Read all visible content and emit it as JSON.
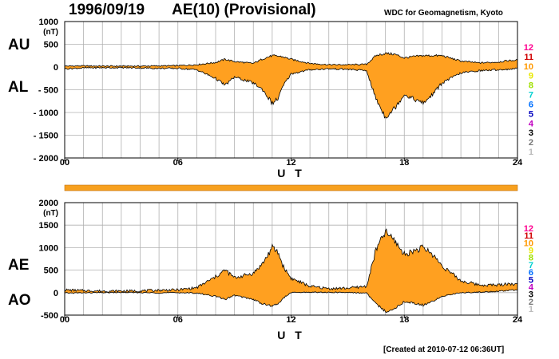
{
  "header": {
    "date": "1996/09/19",
    "index_title": "AE(10) (Provisional)",
    "source": "WDC for Geomagnetism, Kyoto",
    "created": "[Created at 2010-07-12 06:36UT]"
  },
  "colors": {
    "fill": "#FFA020",
    "line": "#000000",
    "grid": "#B0B0B0",
    "bar": "#F7A01E"
  },
  "hour_scale": [
    "12",
    "11",
    "10",
    "9",
    "8",
    "7",
    "6",
    "5",
    "4",
    "3",
    "2",
    "1"
  ],
  "hour_scale_colors": [
    "#FF0090",
    "#D00000",
    "#FF9900",
    "#E8E800",
    "#A0E000",
    "#00D0D0",
    "#0070FF",
    "#0000C0",
    "#C000C0",
    "#000000",
    "#777777",
    "#BBBBBB"
  ],
  "chart_data": [
    {
      "type": "area",
      "title": "AU / AL",
      "ylabel": "(nT)",
      "xlabel": "U T",
      "xlim": [
        0,
        24
      ],
      "ylim": [
        -2000,
        1000
      ],
      "x_ticks": [
        "00",
        "06",
        "12",
        "18",
        "24"
      ],
      "y_ticks": [
        "1000",
        "500",
        "0",
        "- 500",
        "- 1000",
        "- 1500",
        "- 2000"
      ],
      "series_labels": [
        "AU",
        "AL"
      ],
      "series": [
        {
          "name": "AU",
          "x": [
            0,
            1,
            2,
            3,
            4,
            5,
            6,
            7,
            8,
            8.5,
            9,
            10,
            10.5,
            11,
            11.5,
            12,
            13,
            14,
            15,
            16,
            16.5,
            17,
            17.5,
            18,
            18.5,
            19,
            20,
            21,
            22,
            23,
            23.5,
            24
          ],
          "values": [
            20,
            25,
            20,
            20,
            20,
            25,
            30,
            50,
            100,
            170,
            120,
            80,
            180,
            250,
            230,
            170,
            80,
            50,
            50,
            60,
            250,
            300,
            280,
            200,
            230,
            250,
            250,
            130,
            90,
            110,
            140,
            150
          ]
        },
        {
          "name": "AL",
          "x": [
            0,
            1,
            2,
            3,
            4,
            5,
            6,
            7,
            8,
            8.5,
            9,
            10,
            10.5,
            11,
            11.3,
            11.6,
            12,
            13,
            14,
            15,
            16,
            16.5,
            17,
            17.5,
            18,
            18.5,
            19,
            19.5,
            20,
            21,
            22,
            23,
            23.5,
            24
          ],
          "values": [
            -40,
            -20,
            -15,
            -15,
            -20,
            -30,
            -30,
            -60,
            -250,
            -400,
            -220,
            -350,
            -500,
            -800,
            -700,
            -400,
            -150,
            -60,
            -40,
            -50,
            -80,
            -700,
            -1100,
            -900,
            -600,
            -700,
            -800,
            -600,
            -350,
            -130,
            -80,
            -60,
            -50,
            -30
          ]
        }
      ]
    },
    {
      "type": "area",
      "title": "AE / AO",
      "ylabel": "(nT)",
      "xlabel": "U T",
      "xlim": [
        0,
        24
      ],
      "ylim": [
        -500,
        2000
      ],
      "x_ticks": [
        "00",
        "06",
        "12",
        "18",
        "24"
      ],
      "y_ticks": [
        "2000",
        "1500",
        "1000",
        "500",
        "0",
        "-500"
      ],
      "series_labels": [
        "AE",
        "AO"
      ],
      "series": [
        {
          "name": "AE",
          "x": [
            0,
            1,
            2,
            3,
            4,
            5,
            6,
            7,
            8,
            8.5,
            9,
            10,
            10.5,
            11,
            11.3,
            11.6,
            12,
            13,
            14,
            15,
            16,
            16.5,
            17,
            17.5,
            18,
            18.5,
            19,
            19.5,
            20,
            21,
            22,
            23,
            23.5,
            24
          ],
          "values": [
            60,
            45,
            35,
            35,
            40,
            55,
            60,
            110,
            350,
            500,
            330,
            430,
            650,
            1000,
            900,
            570,
            320,
            140,
            90,
            100,
            140,
            950,
            1350,
            1150,
            850,
            930,
            1000,
            850,
            600,
            260,
            170,
            170,
            200,
            180
          ]
        },
        {
          "name": "AO",
          "x": [
            0,
            1,
            2,
            3,
            4,
            5,
            6,
            7,
            8,
            8.5,
            9,
            10,
            10.5,
            11,
            11.3,
            11.6,
            12,
            13,
            14,
            15,
            16,
            16.5,
            17,
            17.5,
            18,
            18.5,
            19,
            19.5,
            20,
            21,
            22,
            23,
            23.5,
            24
          ],
          "values": [
            -10,
            -5,
            0,
            5,
            0,
            -5,
            0,
            -10,
            -80,
            -150,
            -60,
            -150,
            -250,
            -300,
            -250,
            -120,
            0,
            10,
            5,
            5,
            -10,
            -250,
            -420,
            -350,
            -200,
            -230,
            -280,
            -200,
            -80,
            0,
            10,
            30,
            50,
            60
          ]
        }
      ]
    }
  ]
}
